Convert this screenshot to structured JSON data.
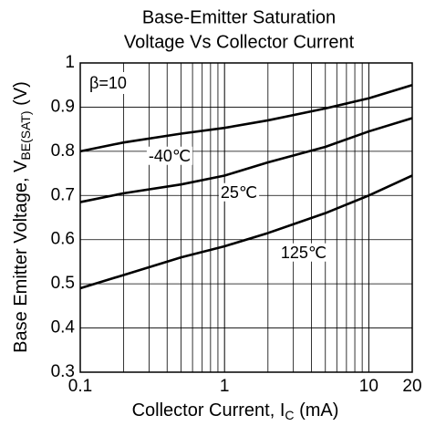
{
  "chart_data": {
    "type": "line",
    "title": [
      "Base-Emitter Saturation",
      "Voltage Vs Collector Current"
    ],
    "x_label": [
      "Collector Current, I",
      "C",
      " (mA)"
    ],
    "y_label": [
      "Base Emitter Voltage, V",
      "BE(SAT)",
      " (V)"
    ],
    "annotation": "β=10",
    "x_log": true,
    "grid": true,
    "xlim": [
      0.1,
      20
    ],
    "ylim": [
      0.3,
      1
    ],
    "xticks": [
      0.1,
      1,
      10,
      20
    ],
    "yticks": [
      0.3,
      0.4,
      0.5,
      0.6,
      0.7,
      0.8,
      0.9,
      1
    ],
    "x": [
      0.1,
      0.2,
      0.5,
      1,
      2,
      5,
      10,
      20
    ],
    "series": [
      {
        "name": "-40℃",
        "color": "#000000",
        "values": [
          0.8,
          0.82,
          0.84,
          0.853,
          0.87,
          0.897,
          0.92,
          0.95
        ]
      },
      {
        "name": "25℃",
        "color": "#000000",
        "values": [
          0.685,
          0.705,
          0.725,
          0.745,
          0.775,
          0.81,
          0.845,
          0.875
        ]
      },
      {
        "name": "125℃",
        "color": "#000000",
        "values": [
          0.49,
          0.52,
          0.56,
          0.585,
          0.615,
          0.66,
          0.7,
          0.745
        ]
      }
    ]
  }
}
